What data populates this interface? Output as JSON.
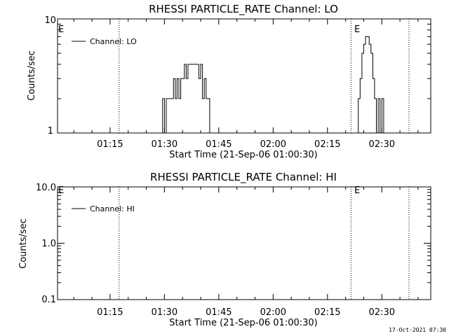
{
  "footer": {
    "timestamp": "17-Oct-2021 07:30"
  },
  "chart_data": [
    {
      "type": "line",
      "title": "RHESSI PARTICLE_RATE Channel: LO",
      "xlabel": "Start Time (21-Sep-06 01:00:30)",
      "ylabel": "Counts/sec",
      "yscale": "log",
      "xlim_minutes_after_01_00": [
        0.5,
        103.5
      ],
      "ylim": [
        1,
        10
      ],
      "x_tick_labels": [
        "01:15",
        "01:30",
        "01:45",
        "02:00",
        "02:15",
        "02:30"
      ],
      "y_tick_labels": [
        "1",
        "10"
      ],
      "series": [
        {
          "name": "Channel: LO",
          "x_minutes_after_01_00": [
            29,
            29.5,
            30,
            30.5,
            31,
            31.5,
            32,
            32.5,
            33,
            33.5,
            34,
            34.5,
            35,
            35.5,
            36,
            36.5,
            37,
            37.5,
            38,
            38.5,
            39,
            39.5,
            40,
            40.5,
            41,
            41.5,
            42,
            42.5,
            43,
            83,
            83.5,
            84,
            84.5,
            85,
            85.5,
            86,
            86.5,
            87,
            87.5,
            88,
            88.5,
            89,
            89.5,
            90
          ],
          "values": [
            1,
            2,
            1,
            2,
            2,
            2,
            2,
            3,
            2,
            3,
            2,
            3,
            3,
            4,
            3,
            4,
            4,
            4,
            4,
            4,
            4,
            3,
            4,
            2,
            3,
            2,
            2,
            1,
            1,
            1,
            2,
            3,
            5,
            6,
            7,
            7,
            6,
            5,
            3,
            2,
            1,
            2,
            1,
            2
          ]
        }
      ],
      "vertical_markers": [
        {
          "x_minutes_after_01_00": 17.5,
          "style": "dotted",
          "label": ""
        },
        {
          "x_minutes_after_01_00": 81.5,
          "style": "dotted",
          "label": "E"
        },
        {
          "x_minutes_after_01_00": 97.5,
          "style": "dotted",
          "label": ""
        }
      ],
      "corner_marker": "E",
      "legend_position": "top-left"
    },
    {
      "type": "line",
      "title": "RHESSI PARTICLE_RATE Channel: HI",
      "xlabel": "Start Time (21-Sep-06 01:00:30)",
      "ylabel": "Counts/sec",
      "yscale": "log",
      "xlim_minutes_after_01_00": [
        0.5,
        103.5
      ],
      "ylim": [
        0.1,
        10
      ],
      "x_tick_labels": [
        "01:15",
        "01:30",
        "01:45",
        "02:00",
        "02:15",
        "02:30"
      ],
      "y_tick_labels": [
        "0.1",
        "1.0",
        "10.0"
      ],
      "series": [
        {
          "name": "Channel: HI",
          "x_minutes_after_01_00": [],
          "values": []
        }
      ],
      "vertical_markers": [
        {
          "x_minutes_after_01_00": 17.5,
          "style": "dotted",
          "label": ""
        },
        {
          "x_minutes_after_01_00": 81.5,
          "style": "dotted",
          "label": "E"
        },
        {
          "x_minutes_after_01_00": 97.5,
          "style": "dotted",
          "label": ""
        }
      ],
      "corner_marker": "E",
      "legend_position": "top-left"
    }
  ]
}
